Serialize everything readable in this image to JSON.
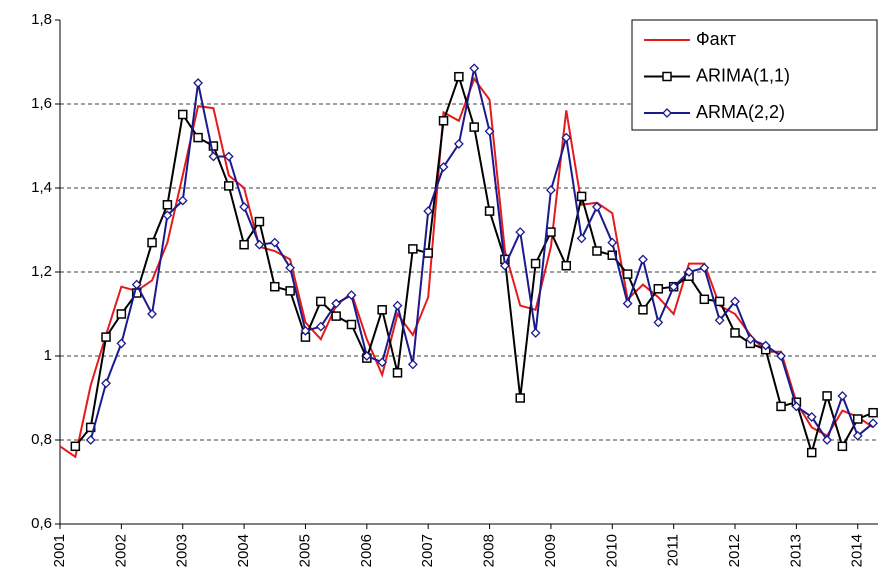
{
  "chart_data": {
    "type": "line",
    "x": [
      2001,
      2001.25,
      2001.5,
      2001.75,
      2002,
      2002.25,
      2002.5,
      2002.75,
      2003,
      2003.25,
      2003.5,
      2003.75,
      2004,
      2004.25,
      2004.5,
      2004.75,
      2005,
      2005.25,
      2005.5,
      2005.75,
      2006,
      2006.25,
      2006.5,
      2006.75,
      2007,
      2007.25,
      2007.5,
      2007.75,
      2008,
      2008.25,
      2008.5,
      2008.75,
      2009,
      2009.25,
      2009.5,
      2009.75,
      2010,
      2010.25,
      2010.5,
      2010.75,
      2011,
      2011.25,
      2011.5,
      2011.75,
      2012,
      2012.25,
      2012.5,
      2012.75,
      2013,
      2013.25,
      2013.5,
      2013.75,
      2014,
      2014.25
    ],
    "series": [
      {
        "name": "Факт",
        "color": "#e41a1c",
        "marker": "none",
        "values": [
          0.785,
          0.76,
          0.93,
          1.05,
          1.165,
          1.155,
          1.18,
          1.27,
          1.43,
          1.595,
          1.59,
          1.43,
          1.4,
          1.26,
          1.25,
          1.23,
          1.08,
          1.04,
          1.12,
          1.15,
          1.04,
          0.955,
          1.1,
          1.05,
          1.14,
          1.58,
          1.56,
          1.66,
          1.61,
          1.25,
          1.12,
          1.11,
          1.26,
          1.585,
          1.36,
          1.365,
          1.34,
          1.135,
          1.17,
          1.14,
          1.1,
          1.22,
          1.22,
          1.12,
          1.1,
          1.05,
          1.01,
          1.01,
          0.89,
          0.83,
          0.81,
          0.87,
          0.855,
          0.83
        ]
      },
      {
        "name": "ARIMA(1,1)",
        "color": "#000000",
        "marker": "square",
        "values": [
          null,
          0.785,
          0.83,
          1.045,
          1.1,
          1.15,
          1.27,
          1.36,
          1.575,
          1.52,
          1.5,
          1.405,
          1.265,
          1.32,
          1.165,
          1.155,
          1.045,
          1.13,
          1.095,
          1.075,
          0.995,
          1.11,
          0.96,
          1.255,
          1.245,
          1.56,
          1.665,
          1.545,
          1.345,
          1.23,
          0.9,
          1.22,
          1.295,
          1.215,
          1.38,
          1.25,
          1.24,
          1.195,
          1.11,
          1.16,
          1.165,
          1.19,
          1.135,
          1.13,
          1.055,
          1.03,
          1.015,
          0.88,
          0.89,
          0.77,
          0.905,
          0.785,
          0.85,
          0.865
        ]
      },
      {
        "name": "ARMA(2,2)",
        "color": "#1a1a8c",
        "marker": "diamond",
        "values": [
          null,
          null,
          0.8,
          0.935,
          1.03,
          1.17,
          1.1,
          1.335,
          1.37,
          1.65,
          1.475,
          1.475,
          1.355,
          1.265,
          1.27,
          1.21,
          1.06,
          1.07,
          1.125,
          1.145,
          1.0,
          0.985,
          1.12,
          0.98,
          1.345,
          1.45,
          1.505,
          1.685,
          1.535,
          1.215,
          1.295,
          1.055,
          1.395,
          1.52,
          1.28,
          1.355,
          1.27,
          1.125,
          1.23,
          1.08,
          1.165,
          1.2,
          1.21,
          1.085,
          1.13,
          1.04,
          1.025,
          1.0,
          0.88,
          0.855,
          0.8,
          0.905,
          0.81,
          0.84
        ]
      }
    ],
    "xlim": [
      2001,
      2014.33
    ],
    "xticks": [
      2001,
      2002,
      2003,
      2004,
      2005,
      2006,
      2007,
      2008,
      2009,
      2010,
      2011,
      2012,
      2013,
      2014
    ],
    "ylim": [
      0.6,
      1.8
    ],
    "yticks": [
      {
        "value": 0.6,
        "label": "0,6"
      },
      {
        "value": 0.8,
        "label": "0,8"
      },
      1,
      {
        "value": 1.2,
        "label": "1,2"
      },
      {
        "value": 1.4,
        "label": "1,4"
      },
      {
        "value": 1.6,
        "label": "1,6"
      },
      {
        "value": 1.8,
        "label": "1,8"
      }
    ],
    "grid": true,
    "legend": "top-right"
  }
}
